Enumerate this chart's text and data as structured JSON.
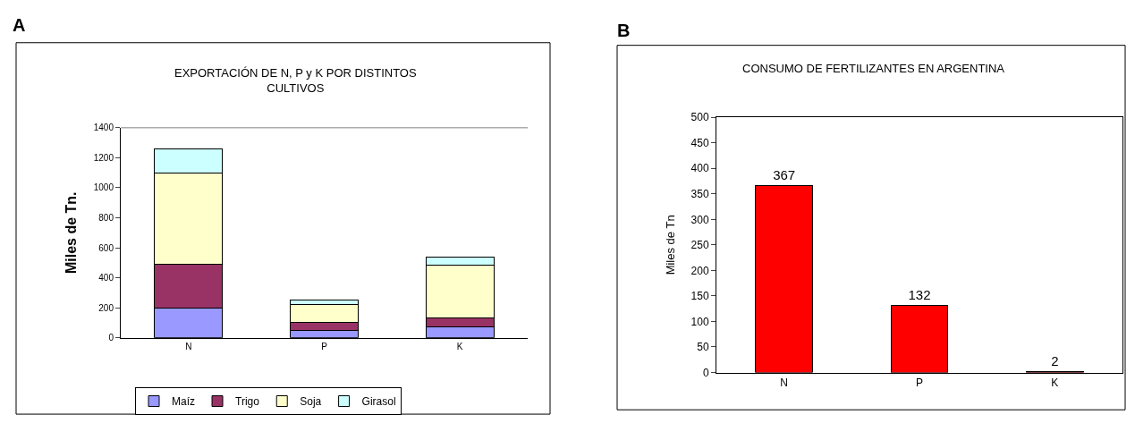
{
  "chart_data": [
    {
      "type": "bar",
      "title": "EXPORTACIÓN DE N, P y K POR DISTINTOS\nCULTIVOS",
      "ylabel": "Miles de Tn.",
      "annotations": [
        "A"
      ],
      "categories": [
        "N",
        "P",
        "K"
      ],
      "stacked": true,
      "legend": "bottom",
      "ylim": [
        0,
        1400
      ],
      "yticks": [
        0,
        200,
        400,
        600,
        800,
        1000,
        1200,
        1400
      ],
      "series": [
        {
          "name": "Maíz",
          "color": "#9999ff",
          "values": [
            200,
            50,
            75
          ]
        },
        {
          "name": "Trigo",
          "color": "#993366",
          "values": [
            290,
            50,
            60
          ]
        },
        {
          "name": "Soja",
          "color": "#ffffcc",
          "values": [
            610,
            120,
            350
          ]
        },
        {
          "name": "Girasol",
          "color": "#ccffff",
          "values": [
            160,
            30,
            50
          ]
        }
      ]
    },
    {
      "type": "bar",
      "title": "CONSUMO DE FERTILIZANTES EN ARGENTINA",
      "ylabel": "Miles de Tn",
      "annotations": [
        "B"
      ],
      "categories": [
        "N",
        "P",
        "K"
      ],
      "values": [
        367,
        132,
        2
      ],
      "color": "#ff0000",
      "data_labels": true,
      "ylim": [
        0,
        500
      ],
      "yticks": [
        0,
        50,
        100,
        150,
        200,
        250,
        300,
        350,
        400,
        450,
        500
      ]
    }
  ]
}
